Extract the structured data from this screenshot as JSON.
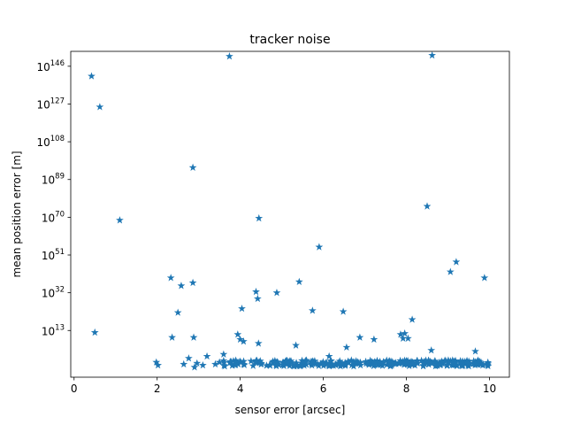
{
  "chart_data": {
    "type": "scatter",
    "title": "tracker noise",
    "xlabel": "sensor error [arcsec]",
    "ylabel": "mean position error [m]",
    "xlim": [
      -0.08,
      10.48
    ],
    "ylim_log10": [
      -10.5,
      153.5
    ],
    "yscale": "log",
    "grid": false,
    "marker": "star",
    "marker_color": "#1f77b4",
    "x_ticks": [
      0,
      2,
      4,
      6,
      8,
      10
    ],
    "x_tick_labels": [
      "0",
      "2",
      "4",
      "6",
      "8",
      "10"
    ],
    "y_ticks_log10": [
      13,
      32,
      51,
      70,
      89,
      108,
      127,
      146
    ],
    "y_tick_labels": [
      {
        "base": "10",
        "exp": "13"
      },
      {
        "base": "10",
        "exp": "32"
      },
      {
        "base": "10",
        "exp": "51"
      },
      {
        "base": "10",
        "exp": "70"
      },
      {
        "base": "10",
        "exp": "89"
      },
      {
        "base": "10",
        "exp": "108"
      },
      {
        "base": "10",
        "exp": "127"
      },
      {
        "base": "10",
        "exp": "146"
      }
    ],
    "outliers_log10": [
      [
        0.42,
        141
      ],
      [
        0.62,
        125.5
      ],
      [
        1.1,
        68.5
      ],
      [
        0.5,
        12
      ],
      [
        1.98,
        -3
      ],
      [
        2.02,
        -4.5
      ],
      [
        2.33,
        39.5
      ],
      [
        2.36,
        9.5
      ],
      [
        2.5,
        22
      ],
      [
        2.58,
        35.5
      ],
      [
        2.64,
        -4
      ],
      [
        2.76,
        -1
      ],
      [
        2.86,
        95
      ],
      [
        2.86,
        37
      ],
      [
        2.88,
        9.5
      ],
      [
        2.9,
        -5.5
      ],
      [
        2.96,
        -3.5
      ],
      [
        3.1,
        -4.5
      ],
      [
        3.2,
        0
      ],
      [
        3.4,
        -4
      ],
      [
        3.5,
        -3
      ],
      [
        3.6,
        1
      ],
      [
        3.74,
        151
      ],
      [
        3.94,
        11
      ],
      [
        4.0,
        8.5
      ],
      [
        4.04,
        24
      ],
      [
        4.08,
        7.5
      ],
      [
        4.38,
        32.5
      ],
      [
        4.42,
        29
      ],
      [
        4.45,
        69.5
      ],
      [
        4.44,
        6.5
      ],
      [
        4.88,
        32
      ],
      [
        5.34,
        5.5
      ],
      [
        5.42,
        37.5
      ],
      [
        5.74,
        23
      ],
      [
        5.9,
        55
      ],
      [
        6.14,
        0
      ],
      [
        6.48,
        22.5
      ],
      [
        6.56,
        4.5
      ],
      [
        6.88,
        9.5
      ],
      [
        7.22,
        8.5
      ],
      [
        7.86,
        11
      ],
      [
        7.92,
        9
      ],
      [
        7.96,
        11.5
      ],
      [
        8.04,
        9
      ],
      [
        8.14,
        18.5
      ],
      [
        8.5,
        75.5
      ],
      [
        8.6,
        3
      ],
      [
        8.62,
        151.5
      ],
      [
        9.06,
        42.5
      ],
      [
        9.2,
        47.5
      ],
      [
        9.66,
        2.5
      ],
      [
        9.88,
        39.5
      ]
    ],
    "noise_band": {
      "x_range": [
        3.6,
        10.0
      ],
      "log10_range": [
        -5,
        -2
      ],
      "points": 300
    }
  }
}
